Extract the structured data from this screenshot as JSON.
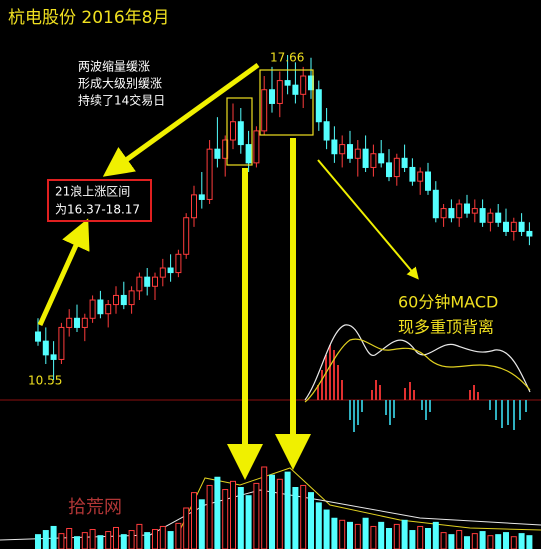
{
  "chart_data": {
    "type": "candlestick",
    "title": "杭电股份 2016年8月",
    "up_color": "#ff3c3c",
    "down_color": "#54ffff",
    "open": [
      11.6,
      11.4,
      11.1,
      11.0,
      11.7,
      11.9,
      11.7,
      11.9,
      12.3,
      12.0,
      12.2,
      12.4,
      12.2,
      12.5,
      12.8,
      12.6,
      12.8,
      13.0,
      12.9,
      13.3,
      14.1,
      14.6,
      14.5,
      15.6,
      15.4,
      15.8,
      16.2,
      15.7,
      15.3,
      16.0,
      16.9,
      16.6,
      17.1,
      17.0,
      16.8,
      17.2,
      16.9,
      16.2,
      15.8,
      15.5,
      15.7,
      15.4,
      15.6,
      15.2,
      15.5,
      15.3,
      15.0,
      15.4,
      15.2,
      14.9,
      15.1,
      14.7,
      14.1,
      14.3,
      14.1,
      14.4,
      14.2,
      14.3,
      14.0,
      14.2,
      14.0,
      13.8,
      14.0,
      13.8
    ],
    "high": [
      11.9,
      11.7,
      11.4,
      11.8,
      12.1,
      12.2,
      12.0,
      12.4,
      12.5,
      12.3,
      12.6,
      12.7,
      12.6,
      12.9,
      13.0,
      12.9,
      13.2,
      13.3,
      13.4,
      14.2,
      14.8,
      15.1,
      15.8,
      16.3,
      15.9,
      16.6,
      16.5,
      16.0,
      16.1,
      17.2,
      17.4,
      17.3,
      17.66,
      17.5,
      17.4,
      17.6,
      17.1,
      16.5,
      16.1,
      15.9,
      16.0,
      15.8,
      15.9,
      15.7,
      15.8,
      15.6,
      15.5,
      15.7,
      15.4,
      15.2,
      15.3,
      14.9,
      14.4,
      14.5,
      14.5,
      14.6,
      14.5,
      14.5,
      14.3,
      14.4,
      14.3,
      14.1,
      14.2,
      14.0
    ],
    "low": [
      11.3,
      10.9,
      10.55,
      10.9,
      11.5,
      11.6,
      11.4,
      11.8,
      11.9,
      11.7,
      12.0,
      12.1,
      12.0,
      12.3,
      12.4,
      12.3,
      12.6,
      12.7,
      12.8,
      13.2,
      13.9,
      14.3,
      14.4,
      15.2,
      15.0,
      15.6,
      15.5,
      15.1,
      15.2,
      15.9,
      16.4,
      16.3,
      16.8,
      16.6,
      16.5,
      16.7,
      16.0,
      15.6,
      15.3,
      15.2,
      15.3,
      15.0,
      15.1,
      15.0,
      15.2,
      14.9,
      14.8,
      15.1,
      14.8,
      14.6,
      14.6,
      14.0,
      13.9,
      14.0,
      13.9,
      14.1,
      14.0,
      13.9,
      13.8,
      13.9,
      13.7,
      13.6,
      13.7,
      13.5
    ],
    "close": [
      11.4,
      11.1,
      11.0,
      11.7,
      11.9,
      11.7,
      11.9,
      12.3,
      12.0,
      12.2,
      12.4,
      12.2,
      12.5,
      12.8,
      12.6,
      12.8,
      13.0,
      12.9,
      13.3,
      14.1,
      14.6,
      14.5,
      15.6,
      15.4,
      15.8,
      16.2,
      15.7,
      15.3,
      16.0,
      16.9,
      16.6,
      17.1,
      17.0,
      16.8,
      17.2,
      16.9,
      16.2,
      15.8,
      15.5,
      15.7,
      15.4,
      15.6,
      15.2,
      15.5,
      15.3,
      15.0,
      15.4,
      15.2,
      14.9,
      15.1,
      14.7,
      14.1,
      14.3,
      14.1,
      14.4,
      14.2,
      14.3,
      14.0,
      14.2,
      14.0,
      13.8,
      14.0,
      13.8,
      13.7
    ],
    "volume": [
      14,
      18,
      22,
      15,
      20,
      12,
      16,
      19,
      13,
      17,
      21,
      14,
      18,
      24,
      16,
      19,
      22,
      17,
      25,
      40,
      55,
      48,
      62,
      70,
      58,
      66,
      60,
      52,
      64,
      80,
      72,
      68,
      75,
      60,
      62,
      55,
      45,
      38,
      30,
      28,
      26,
      24,
      30,
      22,
      26,
      20,
      24,
      28,
      18,
      22,
      20,
      26,
      16,
      14,
      18,
      12,
      15,
      17,
      13,
      14,
      16,
      12,
      15,
      13
    ],
    "high_label": 17.66,
    "low_label": 10.55,
    "annotation_wave": [
      "两波缩量缓涨",
      "形成大级别缓涨",
      "持续了14交易日"
    ],
    "annotation_range": [
      "21浪上涨区间",
      "为16.37-18.17"
    ],
    "annotation_macd": [
      "60分钟MACD",
      "现多重顶背离"
    ],
    "watermark": "拾荒网"
  }
}
